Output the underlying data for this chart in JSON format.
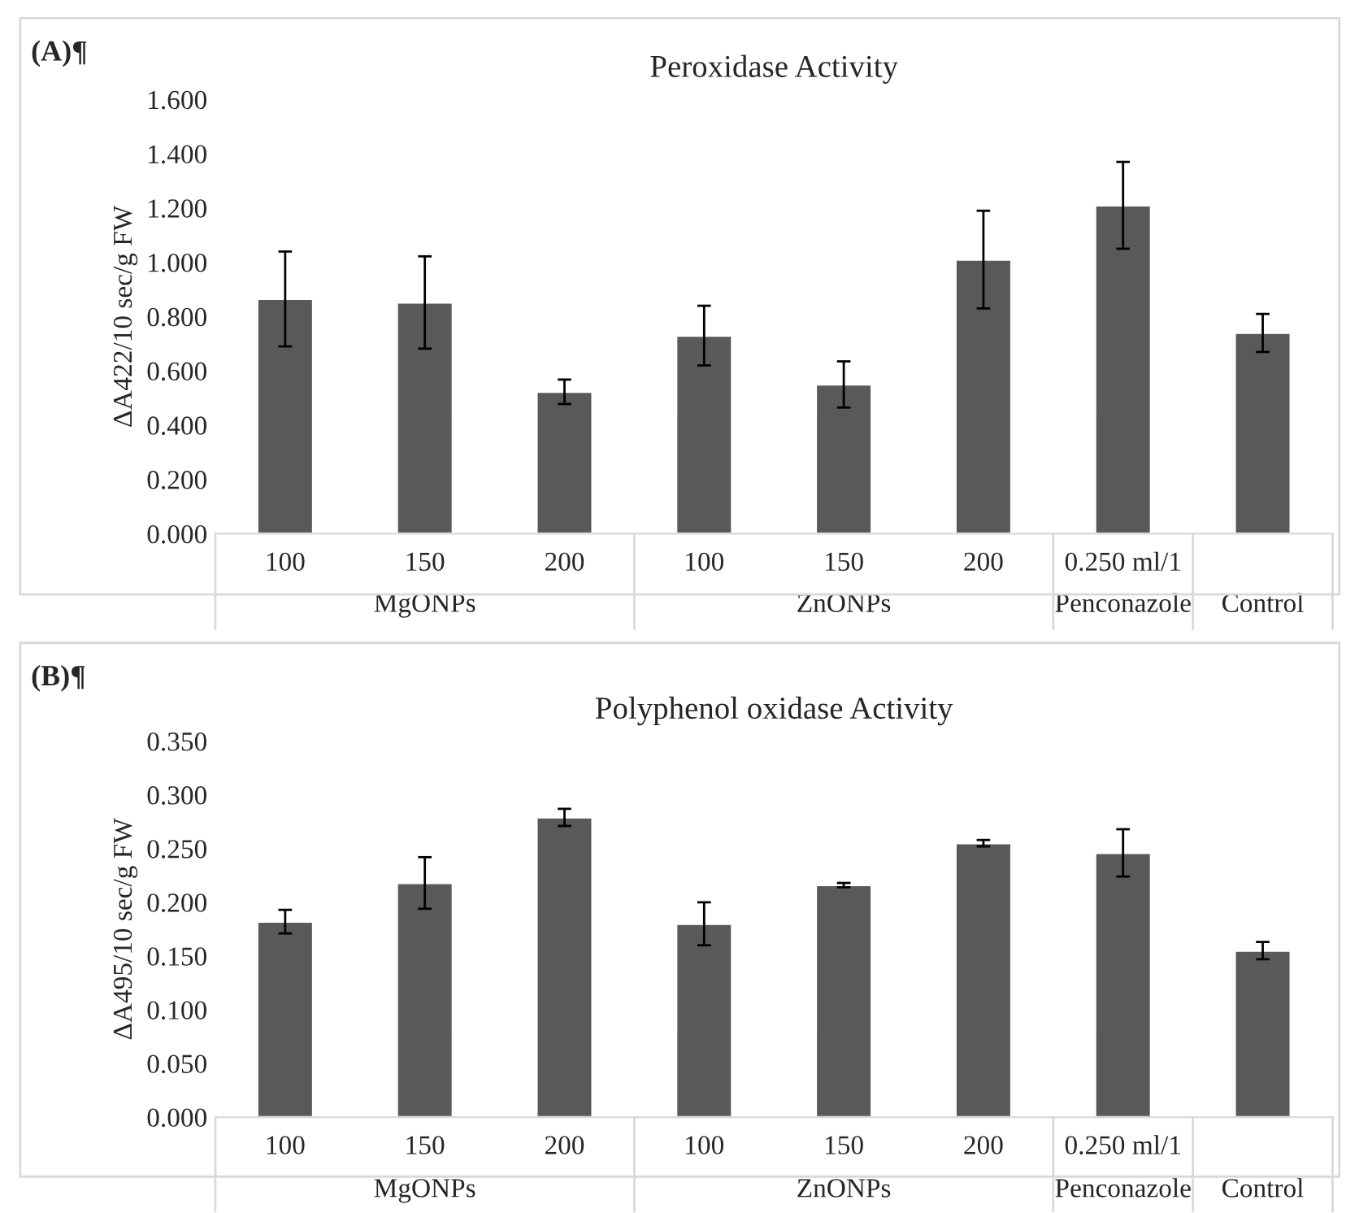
{
  "chart_data": [
    {
      "type": "bar",
      "title": "Peroxidase Activity",
      "ylabel": "ΔA422/10 sec/g FW",
      "categories": [
        "100",
        "150",
        "200",
        "100",
        "150",
        "200",
        "0.250 ml/1",
        null
      ],
      "series": [
        {
          "color": "#595959",
          "values": [
            0.865,
            0.852,
            0.523,
            0.73,
            0.55,
            1.01,
            1.21,
            0.74
          ],
          "errors": [
            0.175,
            0.17,
            0.045,
            0.11,
            0.085,
            0.18,
            0.16,
            0.07
          ]
        }
      ],
      "ylim": [
        0,
        1.6
      ],
      "yticks": [
        {
          "value": 0,
          "label": "0.000"
        },
        {
          "value": 0.2,
          "label": "0.200"
        },
        {
          "value": 0.4,
          "label": "0.400"
        },
        {
          "value": 0.6,
          "label": "0.600"
        },
        {
          "value": 0.8,
          "label": "0.800"
        },
        {
          "value": 1.0,
          "label": "1.000"
        },
        {
          "value": 1.2,
          "label": "1.200"
        },
        {
          "value": 1.4,
          "label": "1.400"
        },
        {
          "value": 1.6,
          "label": "1.600"
        }
      ],
      "annotations": [
        "(A)¶",
        "MgONPs",
        "ZnONPs",
        "Penconazole",
        "Control"
      ],
      "grid": false,
      "legend": false
    },
    {
      "type": "bar",
      "title": "Polyphenol oxidase Activity",
      "ylabel": "ΔA495/10 sec/g FW",
      "categories": [
        "100",
        "150",
        "200",
        "100",
        "150",
        "200",
        "0.250 ml/1",
        null
      ],
      "series": [
        {
          "color": "#595959",
          "values": [
            0.182,
            0.218,
            0.279,
            0.18,
            0.216,
            0.255,
            0.246,
            0.155
          ],
          "errors": [
            0.011,
            0.024,
            0.008,
            0.02,
            0.002,
            0.003,
            0.022,
            0.008
          ]
        }
      ],
      "ylim": [
        0,
        0.35
      ],
      "yticks": [
        {
          "value": 0,
          "label": "0.000"
        },
        {
          "value": 0.05,
          "label": "0.050"
        },
        {
          "value": 0.1,
          "label": "0.100"
        },
        {
          "value": 0.15,
          "label": "0.150"
        },
        {
          "value": 0.2,
          "label": "0.200"
        },
        {
          "value": 0.25,
          "label": "0.250"
        },
        {
          "value": 0.3,
          "label": "0.300"
        },
        {
          "value": 0.35,
          "label": "0.350"
        }
      ],
      "annotations": [
        "(B)¶",
        "MgONPs",
        "ZnONPs",
        "Penconazole",
        "Control"
      ],
      "grid": false,
      "legend": false
    }
  ]
}
